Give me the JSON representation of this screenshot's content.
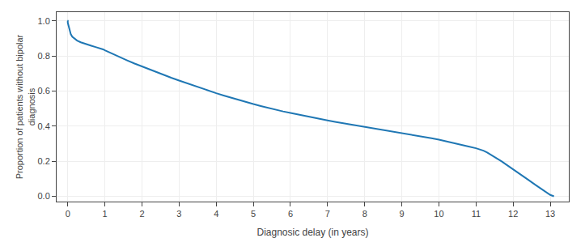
{
  "chart_data": {
    "type": "line",
    "xlabel": "Diagnosic delay (in years)",
    "ylabel": "Proportion of patients without bipolar\ndiagnosis",
    "xlim": [
      -0.3,
      13.5
    ],
    "ylim": [
      -0.03,
      1.05
    ],
    "xticks": [
      0,
      1,
      2,
      3,
      4,
      5,
      6,
      7,
      8,
      9,
      10,
      11,
      12,
      13
    ],
    "yticks": [
      {
        "value": 0.0,
        "label": "0.0"
      },
      0.2,
      0.4,
      0.6,
      0.8,
      {
        "value": 1.0,
        "label": "1.0"
      }
    ],
    "grid": true,
    "x": [
      -0.01,
      0.0,
      0.0,
      0.02,
      0.05,
      0.08,
      0.12,
      0.18,
      0.25,
      0.35,
      0.45,
      0.55,
      0.65,
      0.75,
      0.85,
      0.95,
      1.0,
      1.1,
      1.2,
      1.4,
      1.6,
      1.8,
      2.0,
      2.2,
      2.4,
      2.6,
      2.8,
      3.0,
      3.2,
      3.4,
      3.6,
      3.8,
      4.0,
      4.2,
      4.4,
      4.6,
      4.8,
      5.0,
      5.2,
      5.4,
      5.6,
      5.8,
      6.0,
      6.2,
      6.4,
      6.6,
      6.8,
      7.0,
      7.2,
      7.4,
      7.6,
      7.8,
      8.0,
      8.2,
      8.4,
      8.6,
      8.8,
      9.0,
      9.2,
      9.4,
      9.6,
      9.8,
      10.0,
      10.2,
      10.4,
      10.6,
      10.8,
      11.0,
      11.1,
      11.2,
      11.3,
      11.4,
      11.5,
      11.6,
      11.7,
      11.8,
      12.0,
      12.2,
      12.4,
      12.6,
      12.8,
      13.0,
      13.1
    ],
    "values": [
      1.0,
      1.0,
      0.99,
      0.97,
      0.945,
      0.925,
      0.91,
      0.898,
      0.888,
      0.878,
      0.87,
      0.863,
      0.857,
      0.851,
      0.845,
      0.838,
      0.832,
      0.822,
      0.812,
      0.793,
      0.775,
      0.757,
      0.74,
      0.723,
      0.707,
      0.691,
      0.675,
      0.66,
      0.645,
      0.63,
      0.616,
      0.602,
      0.588,
      0.575,
      0.562,
      0.55,
      0.538,
      0.526,
      0.515,
      0.504,
      0.494,
      0.484,
      0.475,
      0.466,
      0.457,
      0.449,
      0.441,
      0.433,
      0.425,
      0.418,
      0.411,
      0.404,
      0.397,
      0.39,
      0.383,
      0.376,
      0.369,
      0.362,
      0.355,
      0.347,
      0.339,
      0.331,
      0.323,
      0.314,
      0.304,
      0.294,
      0.284,
      0.274,
      0.268,
      0.26,
      0.25,
      0.238,
      0.225,
      0.212,
      0.198,
      0.183,
      0.155,
      0.125,
      0.095,
      0.065,
      0.035,
      0.008,
      0.0
    ]
  }
}
